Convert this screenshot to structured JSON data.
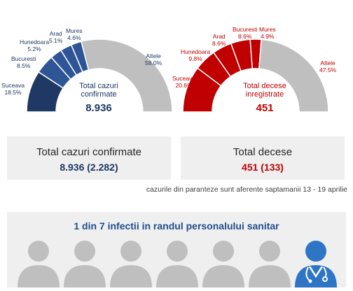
{
  "chart_data": [
    {
      "type": "pie",
      "title": "Total cazuri confirmate",
      "center_value": "8.936",
      "color_scale": [
        "#1f3864",
        "#2e5596",
        "#2e5596",
        "#2e5596",
        "#2e5596",
        "#bfbfbf"
      ],
      "slices": [
        {
          "label": "Suceava",
          "value": 18.5,
          "value_label": "18.5%",
          "color": "#1f3864"
        },
        {
          "label": "Bucuresti",
          "value": 8.5,
          "value_label": "8.5%",
          "color": "#2e5596"
        },
        {
          "label": "Hunedoara",
          "value": 5.2,
          "value_label": "5.2%",
          "color": "#2e5596"
        },
        {
          "label": "Arad",
          "value": 5.1,
          "value_label": "5.1%",
          "color": "#2e5596"
        },
        {
          "label": "Mures",
          "value": 4.6,
          "value_label": "4.6%",
          "color": "#2e5596"
        },
        {
          "label": "Altele",
          "value": 58.0,
          "value_label": "58.0%",
          "color": "#bfbfbf"
        }
      ]
    },
    {
      "type": "pie",
      "title": "Total decese inregistrate",
      "center_value": "451",
      "slices": [
        {
          "label": "Suceava",
          "value": 20.6,
          "value_label": "20.6%",
          "color": "#c00000"
        },
        {
          "label": "Hunedoara",
          "value": 9.8,
          "value_label": "9.8%",
          "color": "#c00000"
        },
        {
          "label": "Arad",
          "value": 8.6,
          "value_label": "8.6%",
          "color": "#c00000"
        },
        {
          "label": "Bucuresti",
          "value": 8.6,
          "value_label": "8.6%",
          "color": "#c00000"
        },
        {
          "label": "Mures",
          "value": 4.9,
          "value_label": "4.9%",
          "color": "#c00000"
        },
        {
          "label": "Altele",
          "value": 47.5,
          "value_label": "47.5%",
          "color": "#bfbfbf"
        }
      ]
    }
  ],
  "left_chart_title_lines": [
    "Total cazuri",
    "confirmate"
  ],
  "right_chart_title_lines": [
    "Total decese",
    "inregistrate"
  ],
  "cards": {
    "cases": {
      "title": "Total cazuri confirmate",
      "value": "8.936 (2.282)",
      "color": "#1f3864"
    },
    "deaths": {
      "title": "Total decese",
      "value": "451 (133)",
      "color": "#c00000"
    }
  },
  "note": "cazurile din paranteze sunt aferente saptamanii 13 - 19 aprilie",
  "banner": {
    "title": "1 din 7 infectii in randul personalului sanitar",
    "total_people": 7,
    "highlighted_index": 6,
    "person_color": "#bfbfbf",
    "highlight_color": "#2e75c6",
    "highlight_icon": "doctor-icon",
    "person_icon": "person-icon"
  }
}
